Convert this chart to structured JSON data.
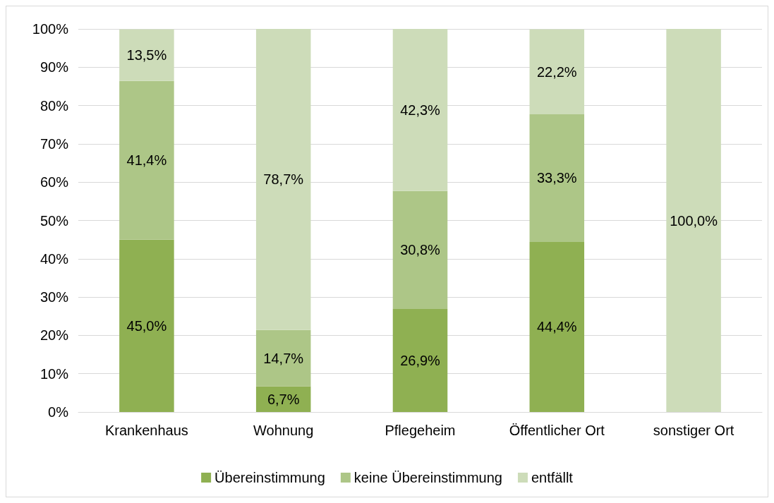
{
  "chart_data": {
    "type": "bar",
    "stacked": true,
    "categories": [
      "Krankenhaus",
      "Wohnung",
      "Pflegeheim",
      "Öffentlicher Ort",
      "sonstiger Ort"
    ],
    "series": [
      {
        "name": "Übereinstimmung",
        "color": "#8fb052",
        "values": [
          45.0,
          6.7,
          26.9,
          44.4,
          0
        ],
        "value_labels": [
          "45,0%",
          "6,7%",
          "26,9%",
          "44,4%",
          null
        ]
      },
      {
        "name": "keine Übereinstimmung",
        "color": "#adc687",
        "values": [
          41.4,
          14.7,
          30.8,
          33.3,
          0
        ],
        "value_labels": [
          "41,4%",
          "14,7%",
          "30,8%",
          "33,3%",
          null
        ]
      },
      {
        "name": "entfällt",
        "color": "#cddcb9",
        "values": [
          13.5,
          78.7,
          42.3,
          22.2,
          100.0
        ],
        "value_labels": [
          "13,5%",
          "78,7%",
          "42,3%",
          "22,2%",
          "100,0%"
        ]
      }
    ],
    "ylim": [
      0,
      100
    ],
    "yticks": [
      {
        "value": 0,
        "label": "0%"
      },
      {
        "value": 10,
        "label": "10%"
      },
      {
        "value": 20,
        "label": "20%"
      },
      {
        "value": 30,
        "label": "30%"
      },
      {
        "value": 40,
        "label": "40%"
      },
      {
        "value": 50,
        "label": "50%"
      },
      {
        "value": 60,
        "label": "60%"
      },
      {
        "value": 70,
        "label": "70%"
      },
      {
        "value": 80,
        "label": "80%"
      },
      {
        "value": 90,
        "label": "90%"
      },
      {
        "value": 100,
        "label": "100%"
      }
    ],
    "grid": "y",
    "legend": "bottom"
  }
}
